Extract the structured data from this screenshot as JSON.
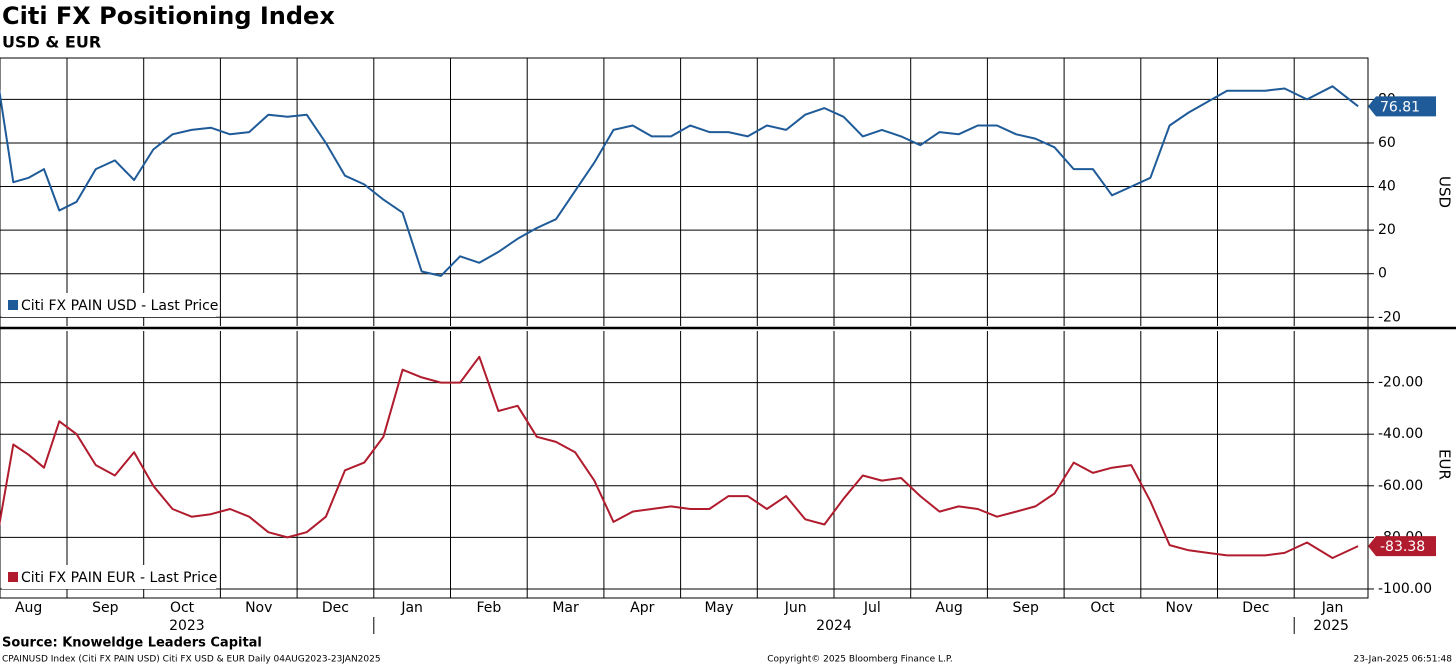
{
  "title": "Citi FX Positioning Index",
  "subtitle": "USD & EUR",
  "x_axis": {
    "ticks": [
      {
        "value": "2023-08",
        "label": "Aug"
      },
      {
        "value": "2023-09",
        "label": "Sep"
      },
      {
        "value": "2023-10",
        "label": "Oct"
      },
      {
        "value": "2023-11",
        "label": "Nov"
      },
      {
        "value": "2023-12",
        "label": "Dec"
      },
      {
        "value": "2024-01",
        "label": "Jan"
      },
      {
        "value": "2024-02",
        "label": "Feb"
      },
      {
        "value": "2024-03",
        "label": "Mar"
      },
      {
        "value": "2024-04",
        "label": "Apr"
      },
      {
        "value": "2024-05",
        "label": "May"
      },
      {
        "value": "2024-06",
        "label": "Jun"
      },
      {
        "value": "2024-07",
        "label": "Jul"
      },
      {
        "value": "2024-08",
        "label": "Aug"
      },
      {
        "value": "2024-09",
        "label": "Sep"
      },
      {
        "value": "2024-10",
        "label": "Oct"
      },
      {
        "value": "2024-11",
        "label": "Nov"
      },
      {
        "value": "2024-12",
        "label": "Dec"
      },
      {
        "value": "2025-01",
        "label": "Jan"
      }
    ],
    "years": [
      "2023",
      "2024",
      "2025"
    ]
  },
  "chart_data": [
    {
      "type": "line",
      "ylabel": "USD",
      "legend": "lower left",
      "grid": true,
      "ylim": [
        -24,
        99
      ],
      "yticks": [
        -20,
        0,
        20,
        40,
        60,
        80
      ],
      "x": [
        "2023-08",
        "2023-08",
        "2023-08",
        "2023-08",
        "2023-08",
        "2023-09",
        "2023-09",
        "2023-09",
        "2023-09",
        "2023-10",
        "2023-10",
        "2023-10",
        "2023-10",
        "2023-11",
        "2023-11",
        "2023-11",
        "2023-11",
        "2023-12",
        "2023-12",
        "2023-12",
        "2023-12",
        "2024-01",
        "2024-01",
        "2024-01",
        "2024-01",
        "2024-02",
        "2024-02",
        "2024-02",
        "2024-02",
        "2024-03",
        "2024-03",
        "2024-03",
        "2024-03",
        "2024-04",
        "2024-04",
        "2024-04",
        "2024-04",
        "2024-05",
        "2024-05",
        "2024-05",
        "2024-05",
        "2024-06",
        "2024-06",
        "2024-06",
        "2024-06",
        "2024-07",
        "2024-07",
        "2024-07",
        "2024-07",
        "2024-08",
        "2024-08",
        "2024-08",
        "2024-08",
        "2024-09",
        "2024-09",
        "2024-09",
        "2024-09",
        "2024-10",
        "2024-10",
        "2024-10",
        "2024-10",
        "2024-11",
        "2024-11",
        "2024-11",
        "2024-11",
        "2024-12",
        "2024-12",
        "2024-12",
        "2024-12",
        "2025-01",
        "2025-01",
        "2025-01"
      ],
      "series": [
        {
          "name": "Citi FX PAIN USD - Last Price",
          "color": "#1f5b98",
          "values": [
            88,
            42,
            44,
            48,
            29,
            33,
            48,
            52,
            43,
            57,
            64,
            66,
            67,
            64,
            65,
            73,
            72,
            73,
            60,
            45,
            41,
            34,
            28,
            1,
            -1,
            8,
            5,
            10,
            16,
            21,
            25,
            38,
            51,
            66,
            68,
            63,
            63,
            68,
            65,
            65,
            63,
            68,
            66,
            73,
            76,
            72,
            63,
            66,
            63,
            59,
            65,
            64,
            68,
            68,
            64,
            62,
            58,
            48,
            48,
            36,
            40,
            44,
            68,
            74,
            79,
            84,
            84,
            84,
            85,
            80,
            86,
            76.81
          ]
        }
      ]
    },
    {
      "type": "line",
      "ylabel": "EUR",
      "legend": "lower left",
      "grid": true,
      "ylim": [
        -103.5,
        0
      ],
      "yticks": [
        {
          "value": -100,
          "label": "-100.00"
        },
        {
          "value": -80,
          "label": "-80.00"
        },
        {
          "value": -60,
          "label": "-60.00"
        },
        {
          "value": -40,
          "label": "-40.00"
        },
        {
          "value": -20,
          "label": "-20.00"
        }
      ],
      "x": [
        "2023-08",
        "2023-08",
        "2023-08",
        "2023-08",
        "2023-08",
        "2023-09",
        "2023-09",
        "2023-09",
        "2023-09",
        "2023-10",
        "2023-10",
        "2023-10",
        "2023-10",
        "2023-11",
        "2023-11",
        "2023-11",
        "2023-11",
        "2023-12",
        "2023-12",
        "2023-12",
        "2023-12",
        "2024-01",
        "2024-01",
        "2024-01",
        "2024-01",
        "2024-02",
        "2024-02",
        "2024-02",
        "2024-02",
        "2024-03",
        "2024-03",
        "2024-03",
        "2024-03",
        "2024-04",
        "2024-04",
        "2024-04",
        "2024-04",
        "2024-05",
        "2024-05",
        "2024-05",
        "2024-05",
        "2024-06",
        "2024-06",
        "2024-06",
        "2024-06",
        "2024-07",
        "2024-07",
        "2024-07",
        "2024-07",
        "2024-08",
        "2024-08",
        "2024-08",
        "2024-08",
        "2024-09",
        "2024-09",
        "2024-09",
        "2024-09",
        "2024-10",
        "2024-10",
        "2024-10",
        "2024-10",
        "2024-11",
        "2024-11",
        "2024-11",
        "2024-11",
        "2024-12",
        "2024-12",
        "2024-12",
        "2024-12",
        "2025-01",
        "2025-01",
        "2025-01"
      ],
      "series": [
        {
          "name": "Citi FX PAIN EUR - Last Price",
          "color": "#b01c2e",
          "values": [
            -78,
            -44,
            -48,
            -53,
            -35,
            -40,
            -52,
            -56,
            -47,
            -60,
            -69,
            -72,
            -71,
            -69,
            -72,
            -78,
            -80,
            -78,
            -72,
            -54,
            -51,
            -41,
            -15,
            -18,
            -20,
            -20,
            -10,
            -31,
            -29,
            -41,
            -43,
            -47,
            -58,
            -74,
            -70,
            -69,
            -68,
            -69,
            -69,
            -64,
            -64,
            -69,
            -64,
            -73,
            -75,
            -65,
            -56,
            -58,
            -57,
            -64,
            -70,
            -68,
            -69,
            -72,
            -70,
            -68,
            -63,
            -51,
            -55,
            -53,
            -52,
            -66,
            -83,
            -85,
            -86,
            -87,
            -87,
            -87,
            -86,
            -82,
            -88,
            -83.38
          ]
        }
      ]
    }
  ],
  "footer": {
    "source": "Source: Knoweldge Leaders Capital",
    "ticker": "CPAINUSD Index (Citi FX PAIN USD) Citi FX USD & EUR  Daily 04AUG2023-23JAN2025",
    "copyright": "Copyright© 2025 Bloomberg Finance L.P.",
    "timestamp": "23-Jan-2025 06:51:48"
  }
}
